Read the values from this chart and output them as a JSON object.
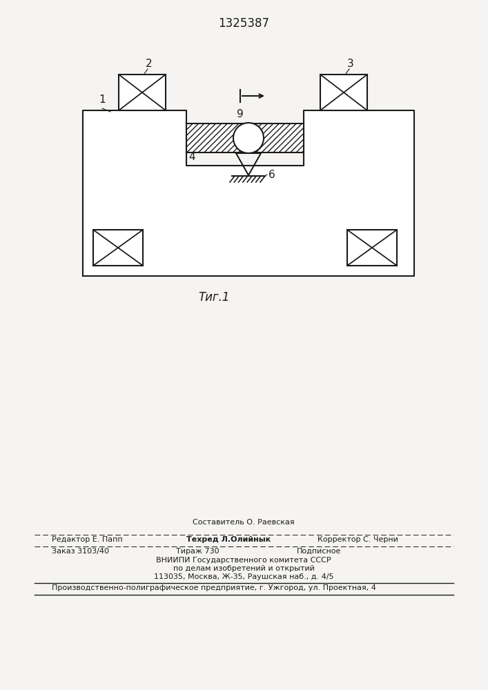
{
  "title": "1325387",
  "fig_caption": "Τиг.1",
  "background_color": "#f5f4f2",
  "line_color": "#1a1a1a",
  "label_1": "1",
  "label_2": "2",
  "label_3": "3",
  "label_4": "4",
  "label_6": "6",
  "label_9": "9",
  "footer_sestavitel": "Составитель О. Раевская",
  "footer_tehred": "Техред Л.Олийнык",
  "footer_redaktor": "Редактор Е. Папп",
  "footer_korrektor": "Корректор С. Черни",
  "footer_zakaz": "Заказ 3103/40",
  "footer_tirazh": "Тираж 730",
  "footer_podpisnoe": "Подписное",
  "footer_vniipи": "ВНИИПИ Государственного комитета СССР",
  "footer_dela": "по делам изобретений и открытий",
  "footer_addr": "113035, Москва, Ж-35, Раушская наб., д. 4/5",
  "footer_proizvod": "Производственно-полиграфическое предприятие, г. Ужгород, ул. Проектная, 4"
}
